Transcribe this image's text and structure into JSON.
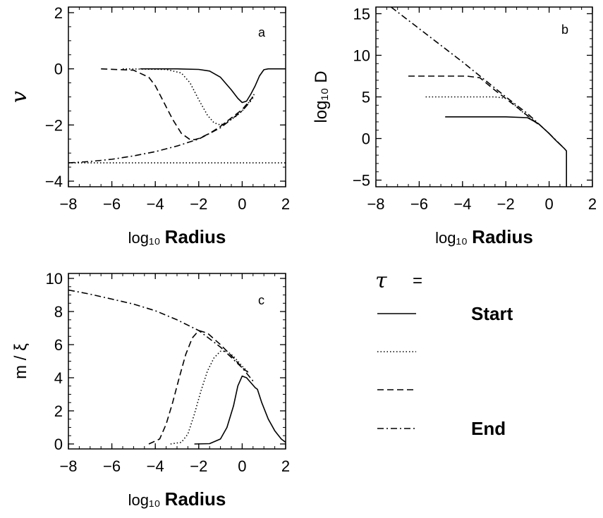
{
  "chart_data": [
    {
      "type": "line",
      "panel": "a",
      "xlabel_prefix": "log₁₀",
      "xlabel_main": "Radius",
      "ylabel": "v",
      "xlim": [
        -8,
        2
      ],
      "ylim": [
        -4.2,
        2.2
      ],
      "xticks": [
        -8,
        -6,
        -4,
        -2,
        0,
        2
      ],
      "yticks": [
        -4,
        -2,
        0,
        2
      ],
      "xtick_labels": [
        "−8",
        "−6",
        "−4",
        "−2",
        "0",
        "2"
      ],
      "ytick_labels": [
        "−4",
        "−2",
        "0",
        "2"
      ],
      "series": [
        {
          "style": "solid",
          "x": [
            -4.7,
            -3.0,
            -2.0,
            -1.5,
            -1.0,
            -0.5,
            -0.2,
            0.0,
            0.2,
            0.4,
            0.6,
            0.8,
            1.0,
            1.2,
            1.5,
            2.0
          ],
          "y": [
            0.0,
            0.0,
            -0.02,
            -0.08,
            -0.3,
            -0.75,
            -1.05,
            -1.2,
            -1.15,
            -0.9,
            -0.6,
            -0.25,
            -0.03,
            0.0,
            0.0,
            0.0
          ]
        },
        {
          "style": "dotted",
          "x": [
            -5.5,
            -3.5,
            -2.8,
            -2.4,
            -2.0,
            -1.6,
            -1.3,
            -1.0,
            -0.7,
            -0.3,
            0.0,
            0.3,
            0.6
          ],
          "y": [
            0.0,
            -0.02,
            -0.15,
            -0.5,
            -1.1,
            -1.65,
            -1.92,
            -2.0,
            -1.9,
            -1.7,
            -1.5,
            -1.2,
            -0.85
          ]
        },
        {
          "style": "dashed",
          "x": [
            -6.5,
            -5.0,
            -4.3,
            -4.0,
            -3.6,
            -3.2,
            -2.8,
            -2.4,
            -2.2,
            -2.0,
            -1.5,
            -1.0,
            -0.5,
            0.0,
            0.5
          ],
          "y": [
            0.0,
            -0.05,
            -0.3,
            -0.6,
            -1.2,
            -1.8,
            -2.3,
            -2.52,
            -2.52,
            -2.48,
            -2.3,
            -2.05,
            -1.75,
            -1.45,
            -1.0
          ]
        },
        {
          "style": "dashdot",
          "x": [
            -8.0,
            -7.0,
            -6.0,
            -5.0,
            -4.0,
            -3.0,
            -2.0,
            -1.0,
            0.0,
            0.5
          ],
          "y": [
            -3.35,
            -3.3,
            -3.22,
            -3.1,
            -2.95,
            -2.75,
            -2.5,
            -2.1,
            -1.5,
            -1.05
          ]
        },
        {
          "style": "dotted",
          "x": [
            -8.0,
            2.0
          ],
          "y": [
            -3.35,
            -3.35
          ]
        }
      ]
    },
    {
      "type": "line",
      "panel": "b",
      "xlabel_prefix": "log₁₀",
      "xlabel_main": "Radius",
      "ylabel": "log₁₀ D",
      "xlim": [
        -8,
        2
      ],
      "ylim": [
        -5.8,
        15.8
      ],
      "xticks": [
        -8,
        -6,
        -4,
        -2,
        0,
        2
      ],
      "yticks": [
        -5,
        0,
        5,
        10,
        15
      ],
      "xtick_labels": [
        "−8",
        "−6",
        "−4",
        "−2",
        "0",
        "2"
      ],
      "ytick_labels": [
        "−5",
        "0",
        "5",
        "10",
        "15"
      ],
      "series": [
        {
          "style": "solid",
          "x": [
            -4.8,
            -2.0,
            -1.0,
            -0.5,
            0.0,
            0.3,
            0.7,
            0.8,
            0.8
          ],
          "y": [
            2.6,
            2.6,
            2.5,
            1.8,
            0.6,
            -0.2,
            -1.2,
            -1.5,
            -5.8
          ]
        },
        {
          "style": "dotted",
          "x": [
            -5.7,
            -2.5,
            -1.9,
            -1.5,
            -1.0,
            -0.5
          ],
          "y": [
            5.0,
            5.0,
            4.8,
            3.8,
            2.7,
            1.7
          ]
        },
        {
          "style": "dashed",
          "x": [
            -6.5,
            -3.8,
            -3.2,
            -2.5,
            -1.5,
            -0.5
          ],
          "y": [
            7.5,
            7.5,
            7.3,
            5.8,
            3.8,
            1.7
          ]
        },
        {
          "style": "dashdot",
          "x": [
            -7.3,
            -6.0,
            -4.0,
            -2.0,
            -1.0,
            0.0,
            0.7
          ],
          "y": [
            15.8,
            13.2,
            9.2,
            5.0,
            3.0,
            0.6,
            -1.2
          ]
        }
      ]
    },
    {
      "type": "line",
      "panel": "c",
      "xlabel_prefix": "log₁₀",
      "xlabel_main": "Radius",
      "ylabel": "m / ξ",
      "xlim": [
        -8,
        2
      ],
      "ylim": [
        -0.3,
        10.3
      ],
      "xticks": [
        -8,
        -6,
        -4,
        -2,
        0,
        2
      ],
      "yticks": [
        0,
        2,
        4,
        6,
        8,
        10
      ],
      "xtick_labels": [
        "−8",
        "−6",
        "−4",
        "−2",
        "0",
        "2"
      ],
      "ytick_labels": [
        "0",
        "2",
        "4",
        "6",
        "8",
        "10"
      ],
      "series": [
        {
          "style": "solid",
          "x": [
            -2.2,
            -1.5,
            -1.0,
            -0.7,
            -0.4,
            -0.2,
            0.0,
            0.2,
            0.4,
            0.6,
            0.7,
            0.9,
            1.2,
            1.5,
            1.8,
            2.0
          ],
          "y": [
            0.0,
            0.02,
            0.3,
            1.0,
            2.3,
            3.5,
            4.1,
            4.0,
            3.7,
            3.4,
            3.3,
            2.5,
            1.5,
            0.8,
            0.3,
            0.1
          ]
        },
        {
          "style": "dotted",
          "x": [
            -3.3,
            -2.8,
            -2.5,
            -2.2,
            -1.9,
            -1.6,
            -1.3,
            -1.0,
            -0.7,
            -0.4,
            0.0,
            0.3
          ],
          "y": [
            0.0,
            0.1,
            0.6,
            1.8,
            3.2,
            4.4,
            5.2,
            5.6,
            5.6,
            5.3,
            4.7,
            4.3
          ]
        },
        {
          "style": "dashed",
          "x": [
            -4.3,
            -3.8,
            -3.5,
            -3.2,
            -2.9,
            -2.6,
            -2.3,
            -2.0,
            -1.6,
            -1.0,
            -0.4,
            0.0,
            0.3
          ],
          "y": [
            0.0,
            0.3,
            1.2,
            2.5,
            4.0,
            5.4,
            6.4,
            6.85,
            6.7,
            6.0,
            5.2,
            4.6,
            4.3
          ]
        },
        {
          "style": "dashdot",
          "x": [
            -8.0,
            -7.0,
            -6.0,
            -5.0,
            -4.0,
            -3.0,
            -2.0,
            -1.0,
            0.0,
            0.5
          ],
          "y": [
            9.3,
            9.05,
            8.75,
            8.45,
            8.05,
            7.5,
            6.85,
            5.85,
            4.6,
            3.8
          ]
        }
      ]
    }
  ],
  "legend": {
    "symbol": "τ",
    "equals": "=",
    "entries": [
      {
        "style": "solid",
        "label": "Start"
      },
      {
        "style": "dotted",
        "label": ""
      },
      {
        "style": "dashed",
        "label": ""
      },
      {
        "style": "dashdot",
        "label": "End"
      }
    ]
  },
  "panel_letters": [
    "a",
    "b",
    "c"
  ]
}
